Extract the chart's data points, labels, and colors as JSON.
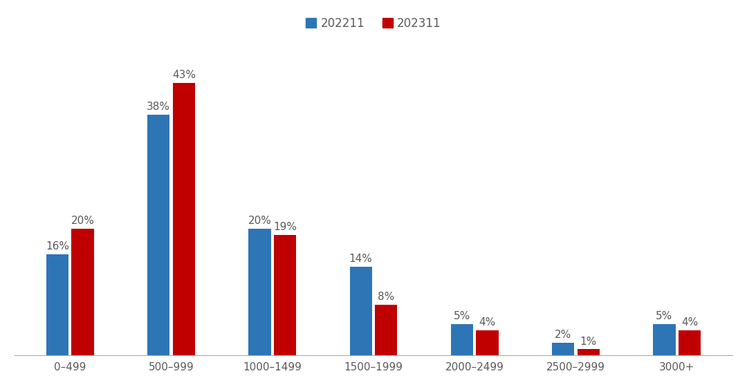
{
  "categories": [
    "0–499",
    "500–999",
    "1000–1499",
    "1500–1999",
    "2000–2499",
    "2500–2999",
    "3000+"
  ],
  "series": [
    {
      "label": "202211",
      "color": "#2E75B6",
      "values": [
        16,
        38,
        20,
        14,
        5,
        2,
        5
      ]
    },
    {
      "label": "202311",
      "color": "#C00000",
      "values": [
        20,
        43,
        19,
        8,
        4,
        1,
        4
      ]
    }
  ],
  "ylim": [
    0,
    50
  ],
  "background_color": "#FFFFFF",
  "bar_width": 0.22,
  "bar_gap": 0.03,
  "legend_fontsize": 12,
  "label_fontsize": 11,
  "tick_fontsize": 11,
  "label_color": "#595959"
}
